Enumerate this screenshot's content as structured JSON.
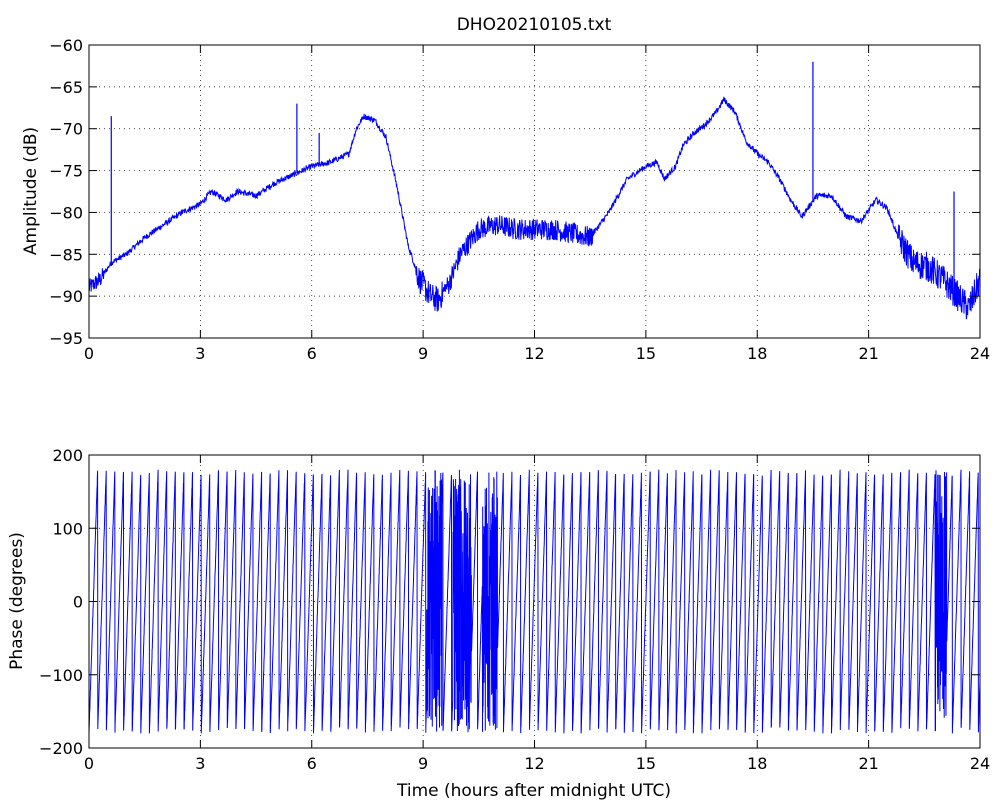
{
  "chart_data": [
    {
      "type": "line",
      "title": "DHO20210105.txt",
      "xlabel": "",
      "ylabel": "Amplitude (dB)",
      "xlim": [
        0,
        24
      ],
      "ylim": [
        -95,
        -60
      ],
      "xticks": [
        "0",
        "3",
        "6",
        "9",
        "12",
        "15",
        "18",
        "21",
        "24"
      ],
      "yticks": [
        "-60",
        "-65",
        "-70",
        "-75",
        "-80",
        "-85",
        "-90",
        "-95"
      ],
      "grid": true,
      "line_color": "#0000ff",
      "series": [
        {
          "x": [
            0,
            0.3,
            0.6,
            1.0,
            1.5,
            2.0,
            2.5,
            3.0,
            3.3,
            3.7,
            4.0,
            4.5,
            5.0,
            5.5,
            6.0,
            6.5,
            7.0,
            7.2,
            7.4,
            7.7,
            8.0,
            8.3,
            8.6,
            8.9,
            9.2,
            9.4,
            9.7,
            10.0,
            10.5,
            11.0,
            11.5,
            12.0,
            12.5,
            13.0,
            13.5,
            14.0,
            14.5,
            15.0,
            15.3,
            15.5,
            15.8,
            16.0,
            16.3,
            16.6,
            16.9,
            17.1,
            17.4,
            17.7,
            18.0,
            18.3,
            18.6,
            18.9,
            19.2,
            19.6,
            20.0,
            20.4,
            20.8,
            21.2,
            21.5,
            21.8,
            22.2,
            22.6,
            23.0,
            23.4,
            23.7,
            24.0
          ],
          "y": [
            -89,
            -88,
            -86,
            -85,
            -83,
            -81.5,
            -80,
            -79,
            -77.5,
            -78.5,
            -77.5,
            -78,
            -76.5,
            -75.5,
            -74.5,
            -74,
            -73,
            -70,
            -68.5,
            -69,
            -71,
            -77,
            -84,
            -88,
            -90,
            -90.5,
            -88.5,
            -85,
            -82,
            -81.5,
            -82,
            -82,
            -82,
            -82.5,
            -83,
            -80,
            -76,
            -74.5,
            -74,
            -76,
            -74.5,
            -72,
            -70.5,
            -69.5,
            -68,
            -66.5,
            -68,
            -71.5,
            -73,
            -74,
            -76,
            -78.5,
            -80.5,
            -78,
            -78,
            -80.5,
            -81,
            -78.5,
            -79.5,
            -83,
            -86,
            -86.5,
            -88,
            -90,
            -91.5,
            -88
          ],
          "spikes": [
            {
              "x": 0.6,
              "y": -68.5
            },
            {
              "x": 5.6,
              "y": -67
            },
            {
              "x": 6.2,
              "y": -70.5
            },
            {
              "x": 19.5,
              "y": -62
            },
            {
              "x": 23.3,
              "y": -77.5
            }
          ]
        }
      ]
    },
    {
      "type": "line",
      "title": "",
      "xlabel": "Time (hours after midnight UTC)",
      "ylabel": "Phase (degrees)",
      "xlim": [
        0,
        24
      ],
      "ylim": [
        -200,
        200
      ],
      "xticks": [
        "0",
        "3",
        "6",
        "9",
        "12",
        "15",
        "18",
        "21",
        "24"
      ],
      "yticks": [
        "200",
        "100",
        "0",
        "-100",
        "-200"
      ],
      "grid": true,
      "line_color": "#0000ff",
      "wrap_range": [
        -180,
        180
      ],
      "approx_wraps_per_hour": 4.3,
      "noisy_intervals": [
        [
          9.1,
          9.5
        ],
        [
          9.8,
          10.3
        ],
        [
          10.6,
          11.0
        ],
        [
          22.8,
          23.1
        ]
      ]
    }
  ]
}
